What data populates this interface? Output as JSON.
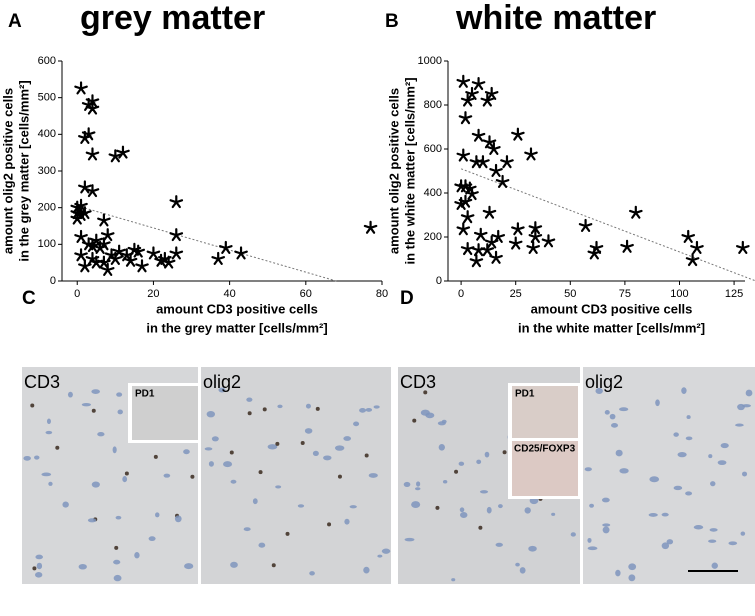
{
  "chart_data": [
    {
      "type": "scatter",
      "panel": "A",
      "title": "grey matter",
      "x_label": [
        "amount CD3 positive cells",
        "in the grey matter [cells/mm²]"
      ],
      "y_label": [
        "amount olig2 positive cells",
        "in the grey matter [cells/mm²]"
      ],
      "color": "#000000",
      "x": [
        1,
        3,
        4,
        4,
        3,
        2,
        4,
        10,
        12,
        2,
        4,
        1,
        0,
        0,
        1,
        0,
        2,
        7,
        8,
        1,
        7,
        3,
        4,
        6,
        1,
        4,
        7,
        2,
        8,
        5,
        11,
        13,
        15,
        16,
        17,
        10,
        14,
        20,
        22,
        23,
        24,
        26,
        26,
        26,
        37,
        39,
        43,
        77,
        5,
        9
      ],
      "y": [
        525,
        480,
        490,
        470,
        400,
        390,
        345,
        340,
        350,
        255,
        245,
        205,
        200,
        185,
        180,
        170,
        185,
        165,
        125,
        120,
        100,
        100,
        95,
        90,
        70,
        60,
        50,
        40,
        30,
        50,
        80,
        70,
        85,
        80,
        40,
        60,
        55,
        75,
        55,
        60,
        50,
        75,
        125,
        215,
        60,
        90,
        75,
        145,
        110,
        70
      ],
      "trendline": {
        "x": [
          0,
          68
        ],
        "y": [
          205,
          0
        ]
      },
      "xlim": [
        -4,
        80
      ],
      "ylim": [
        0,
        600
      ],
      "xticks": [
        0,
        20,
        40,
        60,
        80
      ],
      "yticks": [
        0,
        100,
        200,
        300,
        400,
        500,
        600
      ]
    },
    {
      "type": "scatter",
      "panel": "B",
      "title": "white matter",
      "x_label": [
        "amount CD3 positive cells",
        "in the white matter [cells/mm²]"
      ],
      "y_label": [
        "amount olig2 positive cells",
        "in the white matter [cells/mm²]"
      ],
      "color": "#000000",
      "x": [
        1,
        8,
        5,
        3,
        14,
        12,
        2,
        8,
        13,
        26,
        1,
        7,
        10,
        15,
        16,
        21,
        32,
        19,
        0,
        2,
        4,
        5,
        0,
        2,
        13,
        3,
        80,
        1,
        9,
        17,
        26,
        34,
        34,
        40,
        57,
        62,
        61,
        76,
        104,
        108,
        106,
        129,
        3,
        8,
        12,
        14,
        25,
        16,
        7,
        33
      ],
      "y": [
        905,
        895,
        850,
        820,
        850,
        820,
        740,
        660,
        630,
        665,
        570,
        540,
        540,
        600,
        500,
        540,
        575,
        450,
        430,
        430,
        420,
        395,
        350,
        360,
        310,
        290,
        310,
        235,
        210,
        200,
        235,
        240,
        200,
        180,
        250,
        150,
        125,
        155,
        200,
        150,
        95,
        150,
        145,
        140,
        140,
        175,
        170,
        105,
        90,
        150
      ],
      "trendline": {
        "x": [
          0,
          135
        ],
        "y": [
          510,
          0
        ]
      },
      "xlim": [
        -6,
        130
      ],
      "ylim": [
        0,
        1000
      ],
      "xticks": [
        0,
        25,
        50,
        75,
        100,
        125
      ],
      "yticks": [
        0,
        200,
        400,
        600,
        800,
        1000
      ]
    }
  ],
  "panels": [
    {
      "label": "C",
      "images": [
        {
          "label": "CD3",
          "insets": [
            "PD1"
          ]
        },
        {
          "label": "olig2"
        }
      ]
    },
    {
      "label": "D",
      "images": [
        {
          "label": "CD3",
          "insets": [
            "PD1",
            "CD25/FOXP3"
          ]
        },
        {
          "label": "olig2"
        }
      ]
    }
  ]
}
